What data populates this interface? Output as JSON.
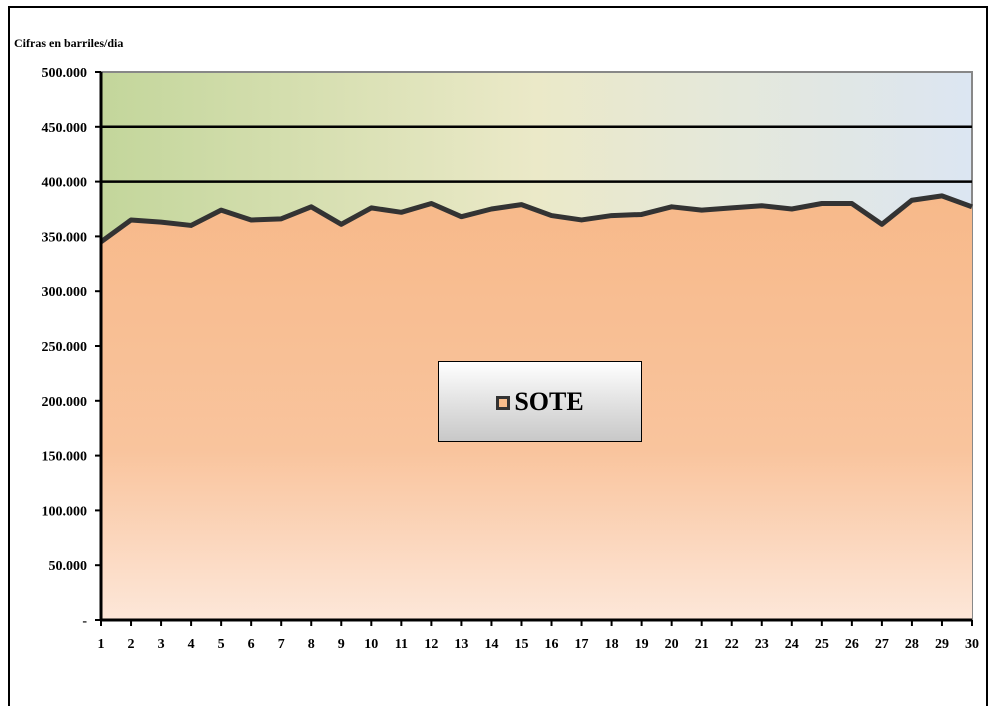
{
  "chart_data": {
    "type": "area",
    "title": "",
    "ylabel": "Cifras en barriles/dia",
    "xlabel": "",
    "ylim": [
      0,
      500000
    ],
    "y_ticks": [
      0,
      50000,
      100000,
      150000,
      200000,
      250000,
      300000,
      350000,
      400000,
      450000,
      500000
    ],
    "y_tick_labels": [
      "-",
      "50.000",
      "100.000",
      "150.000",
      "200.000",
      "250.000",
      "300.000",
      "350.000",
      "400.000",
      "450.000",
      "500.000"
    ],
    "categories": [
      "1",
      "2",
      "3",
      "4",
      "5",
      "6",
      "7",
      "8",
      "9",
      "10",
      "11",
      "12",
      "13",
      "14",
      "15",
      "16",
      "17",
      "18",
      "19",
      "20",
      "21",
      "22",
      "23",
      "24",
      "25",
      "26",
      "27",
      "28",
      "29",
      "30"
    ],
    "series": [
      {
        "name": "SOTE",
        "color": "#f8bd8c",
        "line_color": "#333333",
        "values": [
          345000,
          365000,
          363000,
          360000,
          374000,
          365000,
          366000,
          377000,
          361000,
          376000,
          372000,
          380000,
          368000,
          375000,
          379000,
          369000,
          365000,
          369000,
          370000,
          377000,
          374000,
          376000,
          378000,
          375000,
          380000,
          380000,
          361000,
          383000,
          387000,
          377000
        ]
      }
    ],
    "gridlines": [
      400000,
      450000
    ],
    "legend": "center"
  }
}
